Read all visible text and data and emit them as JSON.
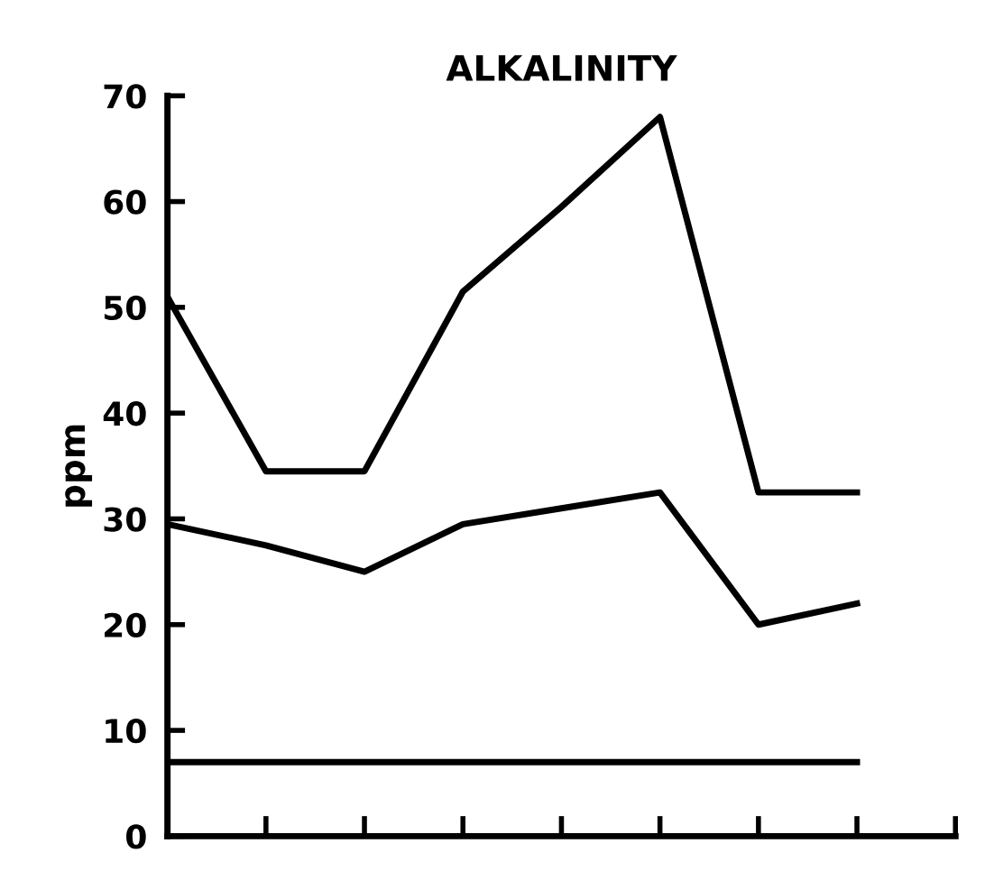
{
  "chart_data": {
    "type": "line",
    "title": "ALKALINITY",
    "ylabel": "ppm",
    "categories": [
      null,
      null,
      null,
      null,
      null,
      null,
      null,
      null
    ],
    "ylim": [
      0,
      70
    ],
    "yticks": [
      0,
      10,
      20,
      30,
      40,
      50,
      60,
      70
    ],
    "grid": false,
    "legend": false,
    "marker": "none",
    "line_style": "solid",
    "series": [
      {
        "color": "#000000",
        "values": [
          51,
          34.5,
          34.5,
          51.5,
          59.5,
          68,
          32.5,
          32.5
        ]
      },
      {
        "color": "#000000",
        "values": [
          29.5,
          27.5,
          25,
          29.5,
          31,
          32.5,
          20,
          22
        ]
      },
      {
        "color": "#000000",
        "values": [
          7,
          7,
          7,
          7,
          7,
          7,
          7,
          7
        ]
      }
    ]
  }
}
